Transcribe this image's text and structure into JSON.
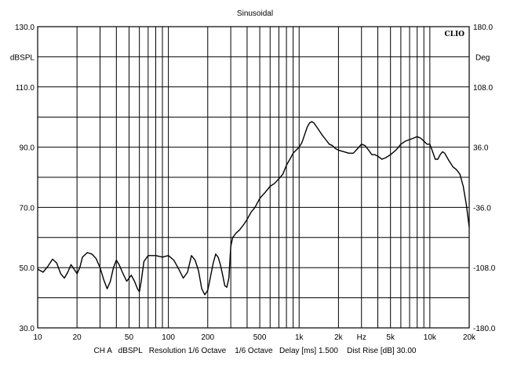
{
  "chart_data": {
    "type": "line",
    "title": "Sinusoidal",
    "brand": "CLIO",
    "ylabel": "dBSPL",
    "y2label": "Deg",
    "x_unit_label": "Hz",
    "footer": "CH A   dBSPL   Resolution 1/6 Octave    1/6 Octave   Delay [ms] 1.500    Dist Rise [dB] 30.00",
    "x_scale": "log",
    "xlim": [
      10,
      20000
    ],
    "ylim": [
      30,
      130
    ],
    "y2lim": [
      -180,
      180
    ],
    "grid": true,
    "x_ticks": [
      {
        "value": 10,
        "label": "10"
      },
      {
        "value": 20,
        "label": "20"
      },
      {
        "value": 50,
        "label": "50"
      },
      {
        "value": 100,
        "label": "100"
      },
      {
        "value": 200,
        "label": "200"
      },
      {
        "value": 500,
        "label": "500"
      },
      {
        "value": 1000,
        "label": "1k"
      },
      {
        "value": 2000,
        "label": "2k"
      },
      {
        "value": 5000,
        "label": "5k"
      },
      {
        "value": 10000,
        "label": "10k"
      },
      {
        "value": 20000,
        "label": "20k"
      }
    ],
    "y_ticks": [
      "130.0",
      "110.0",
      "90.0",
      "70.0",
      "50.0",
      "30.0"
    ],
    "y2_ticks": [
      "180.0",
      "108.0",
      "36.0",
      "-36.0",
      "-108.0",
      "-180.0"
    ],
    "series": [
      {
        "color": "#000000",
        "x": [
          10,
          11,
          12,
          13,
          14,
          15,
          16,
          17,
          18,
          19,
          20,
          21,
          22,
          24,
          26,
          28,
          30,
          32,
          34,
          36,
          38,
          40,
          42,
          45,
          48,
          50,
          52,
          55,
          58,
          60,
          62,
          65,
          70,
          75,
          80,
          90,
          100,
          110,
          120,
          130,
          140,
          150,
          160,
          170,
          180,
          190,
          200,
          210,
          220,
          230,
          240,
          250,
          260,
          270,
          280,
          290,
          300,
          310,
          330,
          350,
          380,
          400,
          430,
          460,
          500,
          550,
          600,
          650,
          700,
          750,
          800,
          850,
          900,
          950,
          1000,
          1050,
          1100,
          1150,
          1200,
          1250,
          1300,
          1400,
          1500,
          1600,
          1700,
          1800,
          1900,
          2000,
          2200,
          2400,
          2600,
          2800,
          3000,
          3200,
          3400,
          3600,
          3800,
          4000,
          4300,
          4600,
          5000,
          5500,
          6000,
          6500,
          7000,
          7500,
          8000,
          8500,
          9000,
          9500,
          10000,
          10500,
          11000,
          11500,
          12000,
          12500,
          13000,
          14000,
          15000,
          16000,
          17000,
          18000,
          19000,
          20000
        ],
        "y": [
          49.5,
          48.5,
          50.5,
          52.8,
          51.5,
          48.0,
          46.5,
          48.5,
          51.0,
          49.5,
          48.0,
          50.0,
          53.5,
          55.0,
          54.5,
          53.0,
          50.0,
          46.0,
          43.0,
          45.5,
          50.0,
          52.5,
          51.0,
          48.0,
          45.5,
          46.5,
          47.5,
          45.5,
          43.0,
          42.0,
          45.5,
          52.0,
          54.0,
          54.0,
          54.0,
          53.5,
          54.0,
          52.5,
          49.5,
          46.5,
          48.5,
          54.0,
          52.5,
          49.0,
          43.0,
          41.0,
          42.5,
          47.0,
          51.5,
          54.5,
          53.5,
          51.0,
          47.5,
          44.0,
          43.5,
          46.5,
          57.0,
          60.0,
          61.5,
          62.5,
          64.5,
          66.0,
          68.5,
          70.0,
          73.0,
          75.0,
          77.0,
          78.0,
          79.5,
          81.0,
          84.0,
          86.0,
          88.0,
          89.0,
          90.0,
          91.5,
          94.0,
          96.5,
          98.0,
          98.5,
          98.0,
          96.0,
          94.0,
          92.5,
          91.0,
          90.5,
          89.5,
          89.0,
          88.5,
          88.0,
          88.0,
          89.5,
          91.0,
          90.5,
          89.0,
          87.5,
          87.5,
          87.0,
          86.0,
          86.5,
          87.5,
          89.0,
          91.0,
          92.0,
          92.5,
          93.0,
          93.5,
          93.0,
          92.0,
          91.0,
          91.0,
          88.5,
          86.0,
          86.0,
          87.5,
          88.5,
          88.0,
          85.5,
          83.5,
          82.5,
          81.0,
          77.0,
          71.0,
          63.5
        ]
      }
    ]
  }
}
